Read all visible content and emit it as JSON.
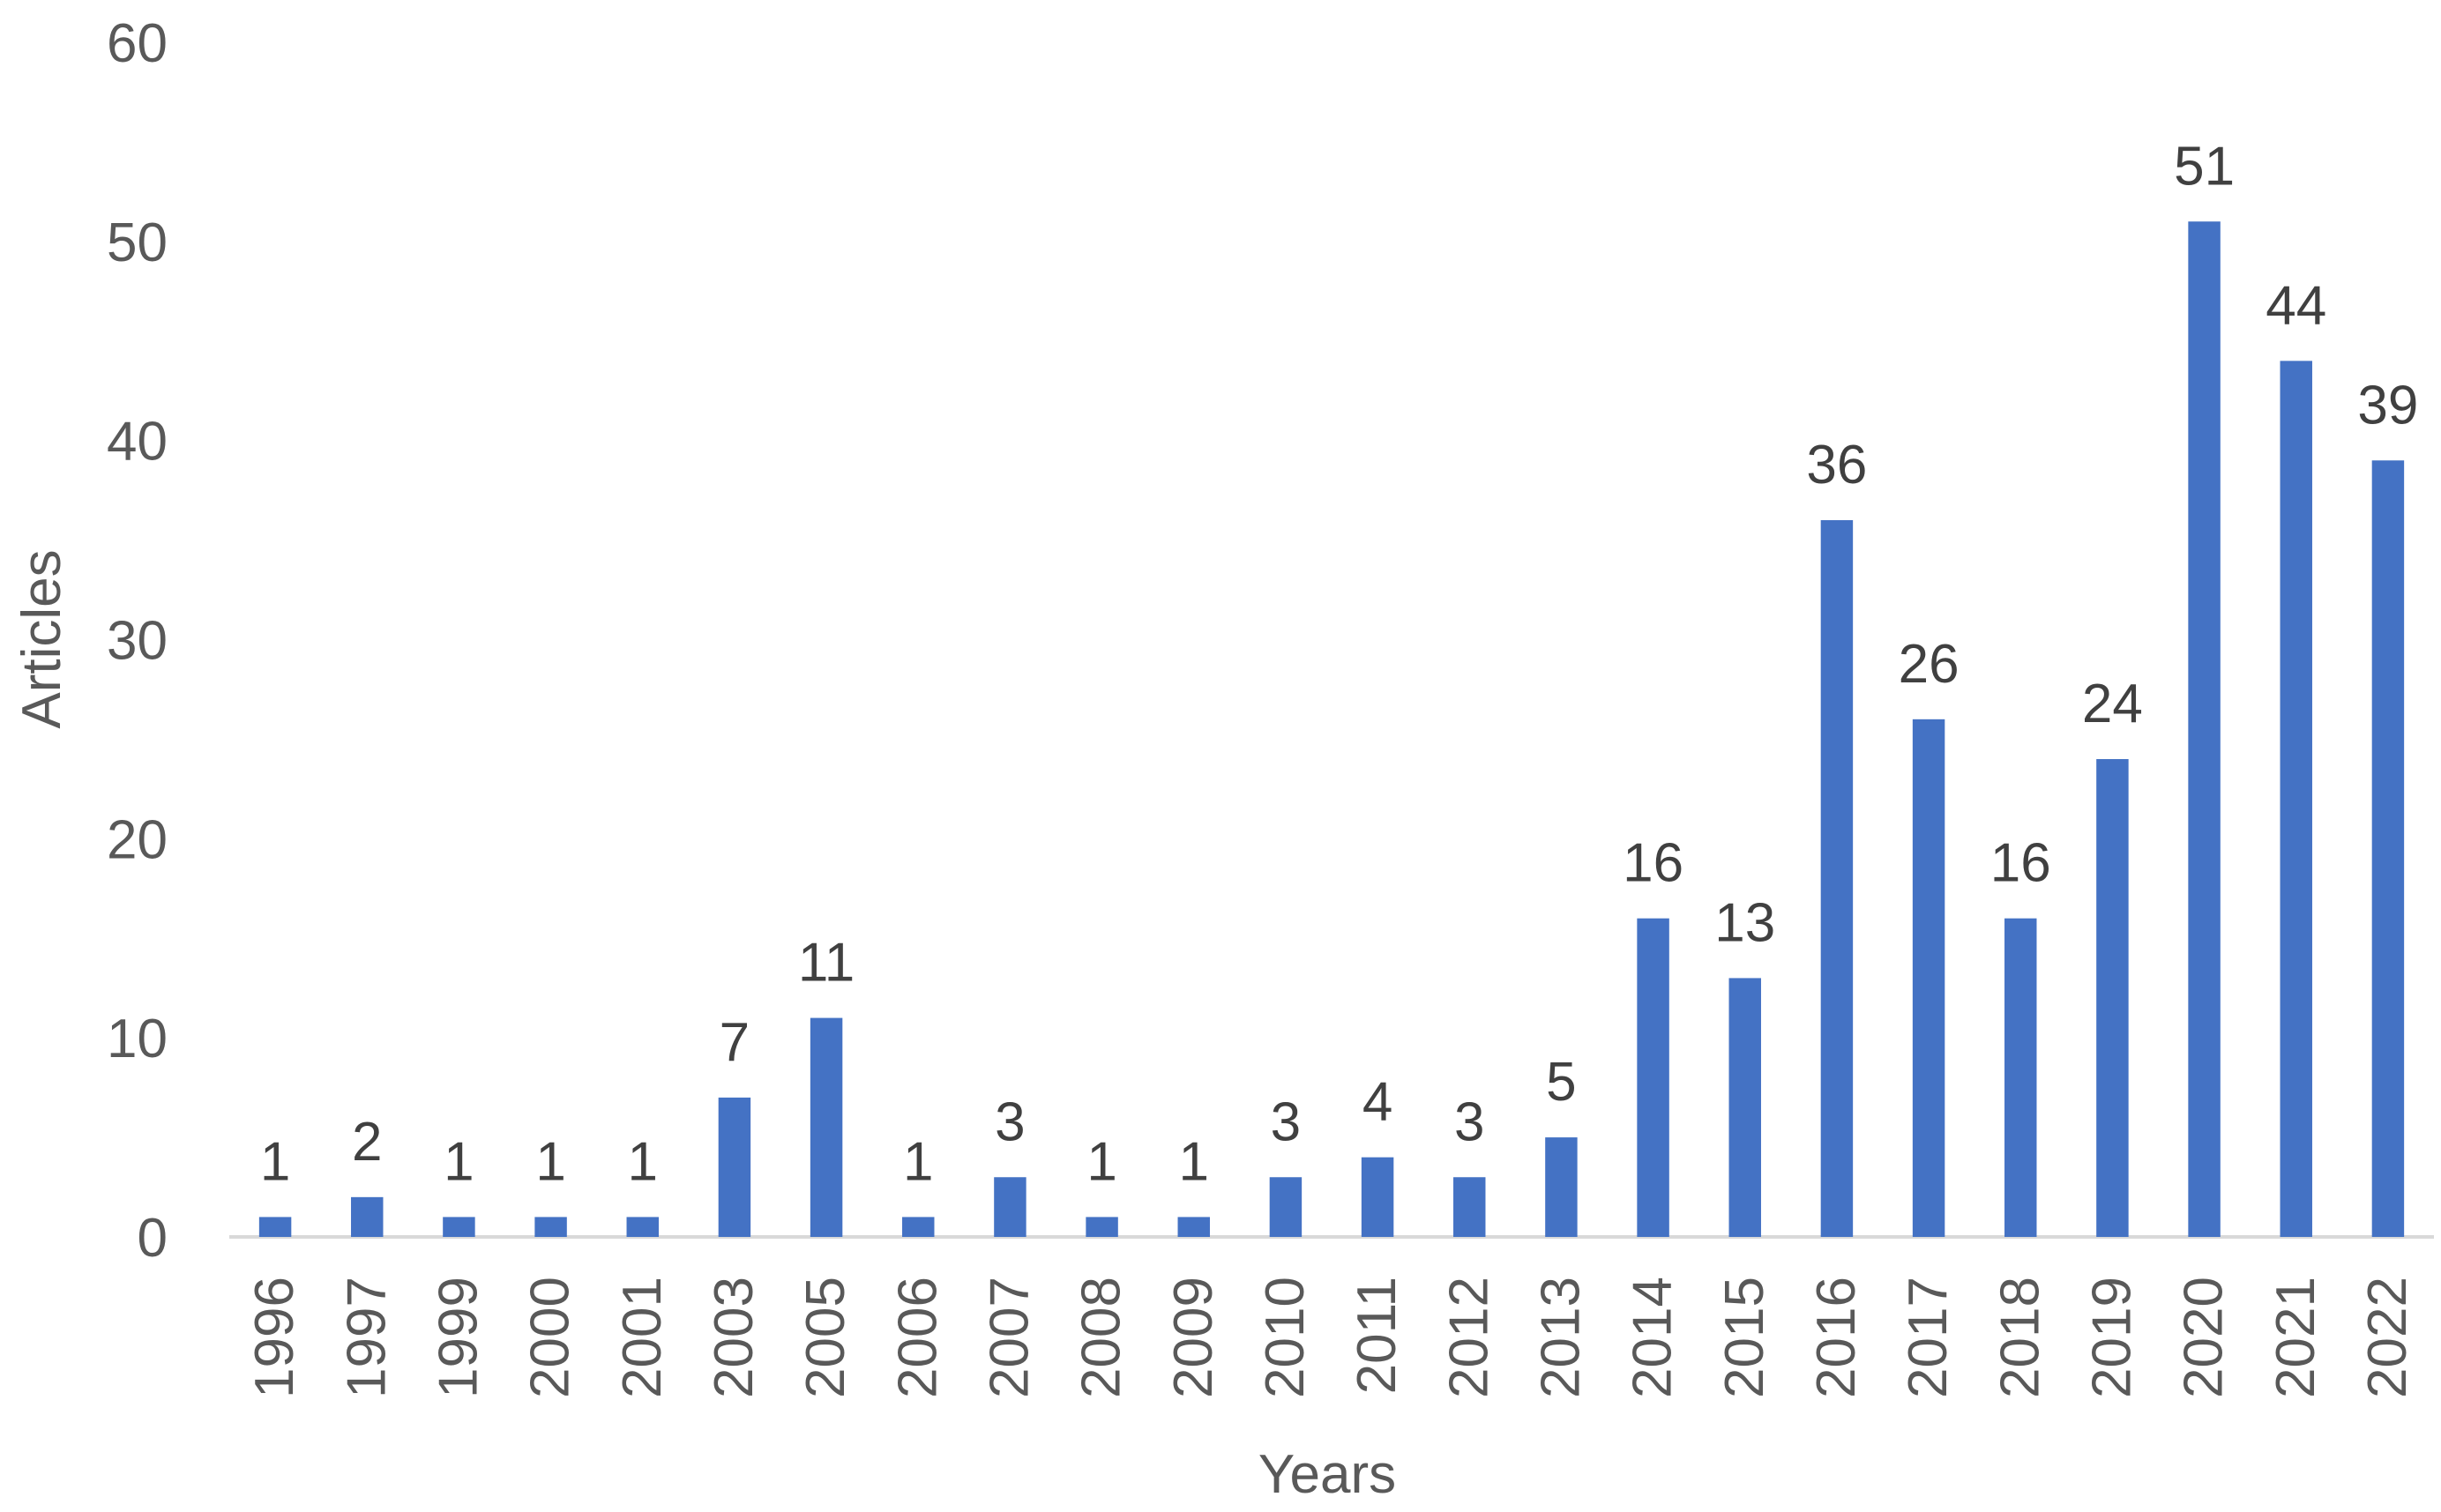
{
  "chart_data": {
    "type": "bar",
    "title": "",
    "xlabel": "Years",
    "ylabel": "Articles",
    "ylim": [
      0,
      60
    ],
    "yticks": [
      "0",
      "10",
      "20",
      "30",
      "40",
      "50",
      "60"
    ],
    "grid": false,
    "legend": "none",
    "bar_color": "#4472C4",
    "categories": [
      "1996",
      "1997",
      "1999",
      "2000",
      "2001",
      "2003",
      "2005",
      "2006",
      "2007",
      "2008",
      "2009",
      "2010",
      "2011",
      "2012",
      "2013",
      "2014",
      "2015",
      "2016",
      "2017",
      "2018",
      "2019",
      "2020",
      "2021",
      "2022"
    ],
    "values": [
      1,
      2,
      1,
      1,
      1,
      7,
      11,
      1,
      3,
      1,
      1,
      3,
      4,
      3,
      5,
      16,
      13,
      36,
      26,
      16,
      24,
      51,
      44,
      39
    ],
    "data_labels": [
      "1",
      "2",
      "1",
      "1",
      "1",
      "7",
      "11",
      "1",
      "3",
      "1",
      "1",
      "3",
      "4",
      "3",
      "5",
      "16",
      "13",
      "36",
      "26",
      "16",
      "24",
      "51",
      "44",
      "39"
    ]
  }
}
